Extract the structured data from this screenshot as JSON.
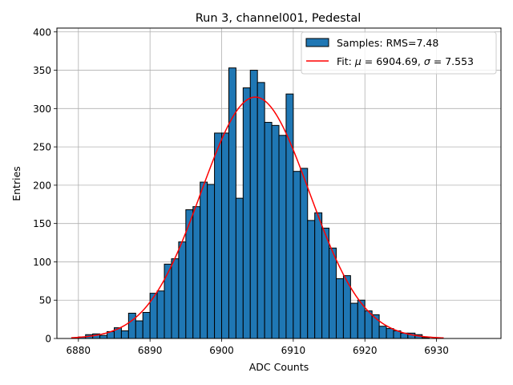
{
  "chart_data": {
    "type": "bar",
    "title": "Run 3, channel001, Pedestal",
    "xlabel": "ADC Counts",
    "ylabel": "Entries",
    "xlim": [
      6877,
      6939
    ],
    "ylim": [
      0,
      405
    ],
    "xticks": [
      6880,
      6890,
      6900,
      6910,
      6920,
      6930
    ],
    "yticks": [
      0,
      50,
      100,
      150,
      200,
      250,
      300,
      350,
      400
    ],
    "grid": true,
    "legend_position": "top-right",
    "bin_width": 1,
    "histogram": {
      "name": "Samples: RMS=7.48",
      "color": "#1f77b4",
      "edge_color": "#000000",
      "bin_starts": [
        6880,
        6881,
        6882,
        6883,
        6884,
        6885,
        6886,
        6887,
        6888,
        6889,
        6890,
        6891,
        6892,
        6893,
        6894,
        6895,
        6896,
        6897,
        6898,
        6899,
        6900,
        6901,
        6902,
        6903,
        6904,
        6905,
        6906,
        6907,
        6908,
        6909,
        6910,
        6911,
        6912,
        6913,
        6914,
        6915,
        6916,
        6917,
        6918,
        6919,
        6920,
        6921,
        6922,
        6923,
        6924,
        6925,
        6926,
        6927,
        6928,
        6929,
        6930
      ],
      "counts": [
        2,
        5,
        6,
        4,
        9,
        14,
        10,
        33,
        23,
        34,
        59,
        62,
        97,
        104,
        126,
        168,
        172,
        204,
        201,
        268,
        268,
        353,
        183,
        327,
        350,
        334,
        282,
        278,
        265,
        319,
        218,
        222,
        154,
        164,
        144,
        118,
        78,
        82,
        46,
        50,
        36,
        31,
        16,
        13,
        10,
        7,
        7,
        5,
        1,
        0,
        0
      ]
    },
    "fit": {
      "name": "Fit: μ = 6904.69, σ = 7.553",
      "label_prefix": "Fit: ",
      "mu_symbol": "μ",
      "mu_text": " = 6904.69, ",
      "sigma_symbol": "σ",
      "sigma_text": " = 7.553",
      "color": "#ff0000",
      "mu": 6904.69,
      "sigma": 7.553,
      "amplitude": 315,
      "x_range": [
        6879,
        6931
      ]
    }
  }
}
